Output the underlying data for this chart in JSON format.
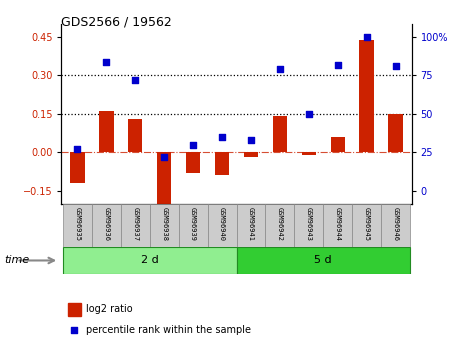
{
  "title": "GDS2566 / 19562",
  "samples": [
    "GSM96935",
    "GSM96936",
    "GSM96937",
    "GSM96938",
    "GSM96939",
    "GSM96940",
    "GSM96941",
    "GSM96942",
    "GSM96943",
    "GSM96944",
    "GSM96945",
    "GSM96946"
  ],
  "log2_ratio": [
    -0.12,
    0.16,
    0.13,
    -0.2,
    -0.08,
    -0.09,
    -0.02,
    0.14,
    -0.01,
    0.06,
    0.44,
    0.15
  ],
  "percentile_rank": [
    27,
    84,
    72,
    22,
    30,
    35,
    33,
    79,
    50,
    82,
    100,
    81
  ],
  "groups": [
    {
      "label": "2 d",
      "start": 0,
      "end": 6,
      "color": "#90EE90"
    },
    {
      "label": "5 d",
      "start": 6,
      "end": 12,
      "color": "#32CD32"
    }
  ],
  "left_ylim": [
    -0.2,
    0.5
  ],
  "left_yticks": [
    -0.15,
    0.0,
    0.15,
    0.3,
    0.45
  ],
  "right_yticks": [
    0,
    25,
    50,
    75,
    100
  ],
  "hlines": [
    0.15,
    0.3
  ],
  "bar_color": "#CC2200",
  "dot_color": "#0000CC",
  "bg_color": "#FFFFFF",
  "bar_width": 0.5,
  "title_fontsize": 9,
  "tick_fontsize": 7,
  "label_fontsize": 5,
  "group_fontsize": 8,
  "legend_fontsize": 7
}
